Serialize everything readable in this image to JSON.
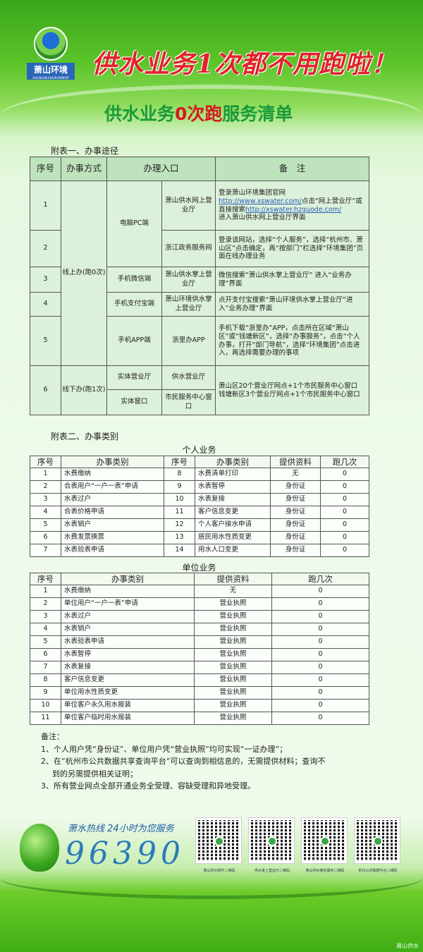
{
  "header": {
    "logo_name": "萧山环境",
    "logo_sub": "XIAOSHAN ENVIRONMENT",
    "slogan": "供水业务1次都不用跑啦！",
    "subtitle_a": "供水业务",
    "subtitle_b": "0次跑",
    "subtitle_c": "服务清单"
  },
  "table1": {
    "title": "附表一、办事途径",
    "headers": [
      "序号",
      "办事方式",
      "办理入口",
      "备　注"
    ],
    "online": "线上办(跑0次)",
    "offline": "线下办(跑1次)",
    "pc": "电脑PC端",
    "wechat": "手机微信端",
    "alipay": "手机支付宝端",
    "app": "手机APP端",
    "rows": [
      {
        "no": "1",
        "entry": "萧山供水网上营业厅",
        "note_a": "登录萧山环境集团官网",
        "link1": "http://www.xswater.com/",
        "note_b": "点击“网上营业厅”或直接搜索",
        "link2": "http://xswater.hzguode.com/",
        "note_c": "进入萧山供水网上营业厅界面"
      },
      {
        "no": "2",
        "entry": "浙江政务服务网",
        "note": "登录该网站，选择“个人服务”，选择“杭州市、萧山区”点击确定，再“按部门”栏选择“环境集团”页面在线办理业务"
      },
      {
        "no": "3",
        "entry": "萧山供水掌上营业厅",
        "note": "微信搜索“萧山供水掌上营业厅” 进入“业务办理”界面"
      },
      {
        "no": "4",
        "entry": "萧山环境供水掌上营业厅",
        "note": "点开支付宝搜索“萧山环境供水掌上营业厅”进入“业务办理”界面"
      },
      {
        "no": "5",
        "entry": "浙里办APP",
        "note": "手机下载“浙里办”APP，点击所在区域“萧山区”或“钱塘新区”，选择“办事服务”，点击“个人办事，打开“部门导航”，选择“环境集团”点击进入，再选择需要办理的事项"
      },
      {
        "no": "6",
        "way1": "实体营业厅",
        "entry1": "供水营业厅",
        "way2": "实体窗口",
        "entry2": "市民服务中心窗口",
        "note": "萧山区20个营业厅网点+1个市民服务中心窗口 钱塘新区3个营业厅网点+1个市民服务中心窗口"
      }
    ]
  },
  "table2": {
    "title": "附表二、办事类别",
    "caption": "个人业务",
    "headers": [
      "序号",
      "办事类别",
      "序号",
      "办事类别",
      "提供资料",
      "跑几次"
    ],
    "rows": [
      [
        "1",
        "水费缴纳",
        "8",
        "水费清单打印",
        "无",
        "0"
      ],
      [
        "2",
        "合表用户“一户一表”申请",
        "9",
        "水表暂停",
        "身份证",
        "0"
      ],
      [
        "3",
        "水表过户",
        "10",
        "水表复接",
        "身份证",
        "0"
      ],
      [
        "4",
        "合表价格申请",
        "11",
        "客户信息变更",
        "身份证",
        "0"
      ],
      [
        "5",
        "水表销户",
        "12",
        "个人客户接水申请",
        "身份证",
        "0"
      ],
      [
        "6",
        "水费发票换票",
        "13",
        "居民用水性质变更",
        "身份证",
        "0"
      ],
      [
        "7",
        "水表验表申请",
        "14",
        "用水人口变更",
        "身份证",
        "0"
      ]
    ]
  },
  "table3": {
    "caption": "单位业务",
    "headers": [
      "序号",
      "办事类别",
      "提供资料",
      "跑几次"
    ],
    "rows": [
      [
        "1",
        "水费缴纳",
        "无",
        "0"
      ],
      [
        "2",
        "单位用户“一户一表”申请",
        "营业执照",
        "0"
      ],
      [
        "3",
        "水表过户",
        "营业执照",
        "0"
      ],
      [
        "4",
        "水表销户",
        "营业执照",
        "0"
      ],
      [
        "5",
        "水表验表申请",
        "营业执照",
        "0"
      ],
      [
        "6",
        "水表暂停",
        "营业执照",
        "0"
      ],
      [
        "7",
        "水表复接",
        "营业执照",
        "0"
      ],
      [
        "8",
        "客户信息变更",
        "营业执照",
        "0"
      ],
      [
        "9",
        "单位用水性质变更",
        "营业执照",
        "0"
      ],
      [
        "10",
        "单位客户永久用水报装",
        "营业执照",
        "0"
      ],
      [
        "11",
        "单位客户临时用水报装",
        "营业执照",
        "0"
      ]
    ]
  },
  "notes": {
    "title": "备注：",
    "items": [
      "1、个人用户凭“身份证”、单位用户凭“营业执照”均可实现“一证办理”；",
      "2、在“杭州市公共数据共享查询平台”可以查询到相信息的，无需提供材料；查询不",
      "到的另需提供相关证明；",
      "3、所有营业网点全部开通业务全受理、容缺受理和异地受理。"
    ]
  },
  "footer": {
    "hotline": "萧水热线 24小时为您服务",
    "phone": "96390",
    "qr_captions": [
      "萧山供水网厅二维码",
      "供水掌上营业厅二维码",
      "萧山供水微信服务二维码",
      "杭州公共数据平台二维码"
    ],
    "watermark": "萧山供水"
  }
}
